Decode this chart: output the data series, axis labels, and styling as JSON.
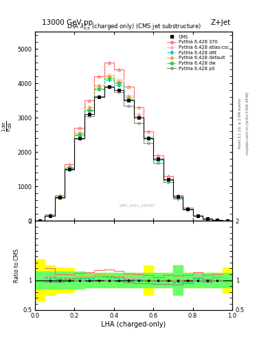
{
  "title_top": "13000 GeV pp",
  "title_right": "Z+Jet",
  "plot_title": "LHA $\\lambda^{1}_{0.5}$ (charged only) (CMS jet substructure)",
  "xlabel": "LHA (charged-only)",
  "right_label_top": "Rivet 3.1.10, ≥ 2.6M events",
  "right_label_bot": "mcplots.cern.ch [arXiv:1306.3436]",
  "watermark": "CMS_2021_220187",
  "xlim": [
    0.0,
    1.0
  ],
  "ylim_main": [
    0,
    5500
  ],
  "ylim_ratio": [
    0.5,
    2.0
  ],
  "lha_bins": [
    0.0,
    0.05,
    0.1,
    0.15,
    0.2,
    0.25,
    0.3,
    0.35,
    0.4,
    0.45,
    0.5,
    0.55,
    0.6,
    0.65,
    0.7,
    0.75,
    0.8,
    0.85,
    0.9,
    0.95,
    1.0
  ],
  "cms_data": [
    0,
    150,
    680,
    1500,
    2400,
    3100,
    3600,
    3900,
    3800,
    3500,
    3000,
    2400,
    1800,
    1200,
    700,
    350,
    150,
    60,
    20,
    5
  ],
  "py370_data": [
    0,
    180,
    750,
    1650,
    2700,
    3500,
    4200,
    4600,
    4400,
    3900,
    3300,
    2600,
    1900,
    1300,
    750,
    380,
    170,
    65,
    22,
    6
  ],
  "py_atlas_data": [
    0,
    160,
    700,
    1560,
    2550,
    3300,
    3900,
    4250,
    4100,
    3650,
    3100,
    2450,
    1820,
    1220,
    700,
    355,
    160,
    62,
    21,
    5
  ],
  "py_d6t_data": [
    0,
    155,
    690,
    1530,
    2480,
    3200,
    3820,
    4100,
    3950,
    3520,
    3000,
    2380,
    1760,
    1180,
    670,
    340,
    155,
    60,
    20,
    5
  ],
  "py_default_data": [
    0,
    162,
    715,
    1570,
    2560,
    3310,
    3950,
    4200,
    4050,
    3600,
    3050,
    2420,
    1800,
    1210,
    695,
    352,
    158,
    61,
    21,
    5
  ],
  "py_dw_data": [
    0,
    158,
    700,
    1540,
    2500,
    3220,
    3850,
    4150,
    4000,
    3550,
    3010,
    2400,
    1780,
    1195,
    680,
    345,
    157,
    61,
    21,
    5
  ],
  "py_p0_data": [
    0,
    145,
    660,
    1480,
    2380,
    3050,
    3620,
    3880,
    3750,
    3350,
    2850,
    2270,
    1680,
    1130,
    650,
    330,
    150,
    58,
    20,
    5
  ],
  "ratio_green_lo": [
    0.85,
    0.85,
    0.85,
    0.85,
    0.85,
    0.88,
    0.88,
    0.88,
    0.88,
    0.88,
    0.88,
    0.88,
    0.88,
    0.88,
    0.75,
    0.88,
    0.88,
    0.88,
    0.88,
    0.88
  ],
  "ratio_green_hi": [
    1.15,
    1.15,
    1.15,
    1.15,
    1.15,
    1.12,
    1.12,
    1.12,
    1.12,
    1.12,
    1.12,
    1.12,
    1.12,
    1.12,
    1.25,
    1.12,
    1.12,
    1.12,
    1.12,
    1.12
  ],
  "ratio_yellow_lo": [
    0.65,
    0.75,
    0.78,
    0.8,
    0.88,
    0.88,
    0.88,
    0.88,
    0.88,
    0.88,
    0.88,
    0.75,
    0.88,
    0.88,
    0.75,
    0.88,
    0.88,
    0.88,
    0.88,
    0.78
  ],
  "ratio_yellow_hi": [
    1.35,
    1.25,
    1.22,
    1.2,
    1.12,
    1.12,
    1.12,
    1.12,
    1.12,
    1.12,
    1.12,
    1.25,
    1.12,
    1.12,
    1.25,
    1.12,
    1.12,
    1.12,
    1.12,
    1.22
  ],
  "colors": {
    "cms": "black",
    "py370": "#ff6666",
    "py_atlas": "#ff99cc",
    "py_d6t": "#00cccc",
    "py_default": "#ff9933",
    "py_dw": "#33cc33",
    "py_p0": "#888888"
  }
}
